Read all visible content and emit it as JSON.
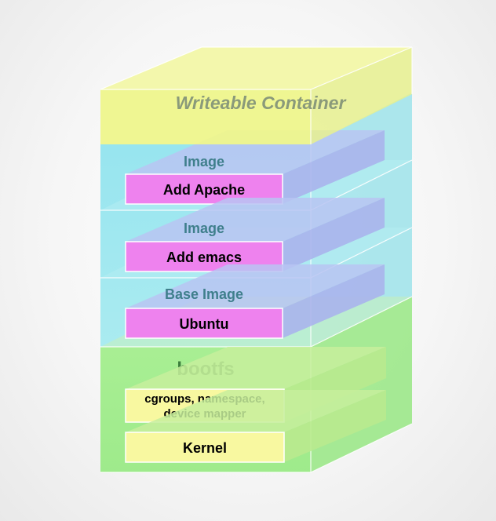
{
  "diagram": {
    "container_label": "Writeable Container",
    "layers": [
      {
        "heading": "Image",
        "box_label": "Add Apache"
      },
      {
        "heading": "Image",
        "box_label": "Add emacs"
      },
      {
        "heading": "Base Image",
        "box_label": "Ubuntu"
      }
    ],
    "bootfs": {
      "heading": "bootfs",
      "cgroups_line1": "cgroups, namespace,",
      "cgroups_line2": "device mapper",
      "kernel_label": "Kernel"
    }
  },
  "colors": {
    "container": "#eef58c",
    "image_layer": "#9ee6ee",
    "box_pink": "#ee82ee",
    "bootfs": "#a6ee8c",
    "box_yellow": "#f8f8a0"
  }
}
